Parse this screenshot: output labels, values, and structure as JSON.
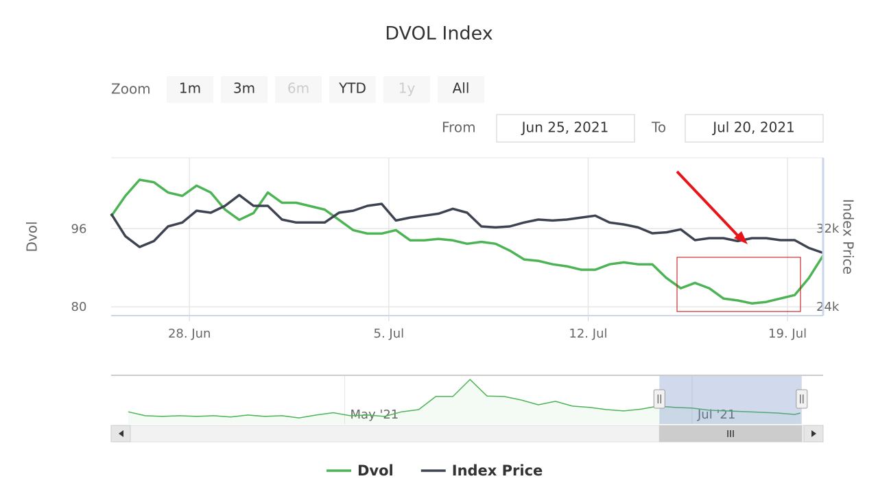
{
  "chart_data": {
    "type": "line",
    "title": "DVOL Index",
    "range_selector": {
      "zoom_label": "Zoom",
      "buttons": [
        {
          "label": "1m",
          "enabled": true
        },
        {
          "label": "3m",
          "enabled": true
        },
        {
          "label": "6m",
          "enabled": false
        },
        {
          "label": "YTD",
          "enabled": true
        },
        {
          "label": "1y",
          "enabled": false
        },
        {
          "label": "All",
          "enabled": true
        }
      ],
      "from_label": "From",
      "from": "Jun 25, 2021",
      "to_label": "To",
      "to": "Jul 20, 2021"
    },
    "ylabel": "Dvol",
    "y2label": "Index Price",
    "x": [
      "2021-06-25T06:00",
      "2021-06-25T18:00",
      "2021-06-26T06:00",
      "2021-06-26T18:00",
      "2021-06-27T06:00",
      "2021-06-27T18:00",
      "2021-06-28T06:00",
      "2021-06-28T18:00",
      "2021-06-29T06:00",
      "2021-06-29T18:00",
      "2021-06-30T06:00",
      "2021-06-30T18:00",
      "2021-07-01T06:00",
      "2021-07-01T18:00",
      "2021-07-02T06:00",
      "2021-07-02T18:00",
      "2021-07-03T06:00",
      "2021-07-03T18:00",
      "2021-07-04T06:00",
      "2021-07-04T18:00",
      "2021-07-05T06:00",
      "2021-07-05T18:00",
      "2021-07-06T06:00",
      "2021-07-06T18:00",
      "2021-07-07T06:00",
      "2021-07-07T18:00",
      "2021-07-08T06:00",
      "2021-07-08T18:00",
      "2021-07-09T06:00",
      "2021-07-09T18:00",
      "2021-07-10T06:00",
      "2021-07-10T18:00",
      "2021-07-11T06:00",
      "2021-07-11T18:00",
      "2021-07-12T06:00",
      "2021-07-12T18:00",
      "2021-07-13T06:00",
      "2021-07-13T18:00",
      "2021-07-14T06:00",
      "2021-07-14T18:00",
      "2021-07-15T06:00",
      "2021-07-15T18:00",
      "2021-07-16T06:00",
      "2021-07-16T18:00",
      "2021-07-17T06:00",
      "2021-07-17T18:00",
      "2021-07-18T06:00",
      "2021-07-18T18:00",
      "2021-07-19T06:00",
      "2021-07-19T18:00",
      "2021-07-20T06:00"
    ],
    "series": [
      {
        "name": "Dvol",
        "color": "#4cb454",
        "values": [
          98.5,
          102.7,
          106,
          105.5,
          103.4,
          102.7,
          104.8,
          103.4,
          99.9,
          97.8,
          99.2,
          103.4,
          101.3,
          101.3,
          100.6,
          99.9,
          97.8,
          95.7,
          95,
          95,
          95.7,
          93.6,
          93.6,
          93.9,
          93.6,
          92.9,
          93.3,
          92.9,
          91.5,
          89.7,
          89.4,
          88.7,
          88.3,
          87.6,
          87.6,
          88.7,
          89.1,
          88.7,
          88.7,
          85.9,
          83.8,
          84.9,
          83.8,
          81.7,
          81.3,
          80.7,
          81,
          81.7,
          82.4,
          85.9,
          90.5
        ]
      },
      {
        "name": "Index Price",
        "color": "#3d4350",
        "axis": "y2",
        "values": [
          33500,
          31200,
          30100,
          30700,
          32200,
          32600,
          33800,
          33600,
          34300,
          35400,
          34300,
          34300,
          32900,
          32600,
          32600,
          32600,
          33600,
          33800,
          34300,
          34500,
          32800,
          33100,
          33300,
          33500,
          34000,
          33600,
          32200,
          32100,
          32200,
          32600,
          32900,
          32800,
          32900,
          33100,
          33300,
          32600,
          32400,
          32100,
          31500,
          31600,
          31900,
          30800,
          31000,
          31000,
          30700,
          31000,
          31000,
          30800,
          30800,
          30000,
          29500
        ]
      }
    ],
    "xlim": [
      "2021-06-25T06:00",
      "2021-07-20T06:00"
    ],
    "xticks": [
      {
        "value": "2021-06-28",
        "label": "28. Jun"
      },
      {
        "value": "2021-07-05",
        "label": "5. Jul"
      },
      {
        "value": "2021-07-12",
        "label": "12. Jul"
      },
      {
        "value": "2021-07-19",
        "label": "19. Jul"
      }
    ],
    "ylim": [
      78.2,
      110.5
    ],
    "yticks": [
      80,
      96
    ],
    "y2lim": [
      23100,
      39200
    ],
    "y2ticks": [
      {
        "value": 24000,
        "label": "24k"
      },
      {
        "value": 32000,
        "label": "32k"
      }
    ],
    "grid": true,
    "legend": "bottom",
    "navigator": {
      "color": "#4cb454",
      "x": [
        "2021-03-24",
        "2021-03-27",
        "2021-03-30",
        "2021-04-02",
        "2021-04-05",
        "2021-04-08",
        "2021-04-11",
        "2021-04-14",
        "2021-04-17",
        "2021-04-20",
        "2021-04-23",
        "2021-04-26",
        "2021-04-29",
        "2021-05-02",
        "2021-05-05",
        "2021-05-08",
        "2021-05-11",
        "2021-05-14",
        "2021-05-17",
        "2021-05-20",
        "2021-05-23",
        "2021-05-26",
        "2021-05-29",
        "2021-06-01",
        "2021-06-04",
        "2021-06-07",
        "2021-06-10",
        "2021-06-13",
        "2021-06-16",
        "2021-06-19",
        "2021-06-22",
        "2021-06-25",
        "2021-06-28",
        "2021-07-01",
        "2021-07-04",
        "2021-07-07",
        "2021-07-10",
        "2021-07-13",
        "2021-07-16",
        "2021-07-19",
        "2021-07-20"
      ],
      "values": [
        96,
        91.5,
        90.7,
        91.5,
        90.7,
        91.5,
        90,
        92.3,
        90.7,
        91.5,
        89,
        92.3,
        95,
        91.5,
        92.3,
        90.7,
        96,
        98.5,
        113.5,
        113.5,
        133,
        114,
        113.5,
        109.5,
        104,
        108,
        102.5,
        101,
        98.5,
        97,
        99,
        102.5,
        101,
        100.2,
        97.8,
        97,
        96.2,
        95.4,
        94.6,
        93,
        94.6
      ],
      "xlim": [
        "2021-03-21",
        "2021-07-24"
      ],
      "ylim": [
        82,
        137
      ],
      "xticks": [
        {
          "value": "2021-05-01",
          "label": "May '21"
        },
        {
          "value": "2021-07-01",
          "label": "Jul '21"
        }
      ]
    }
  }
}
